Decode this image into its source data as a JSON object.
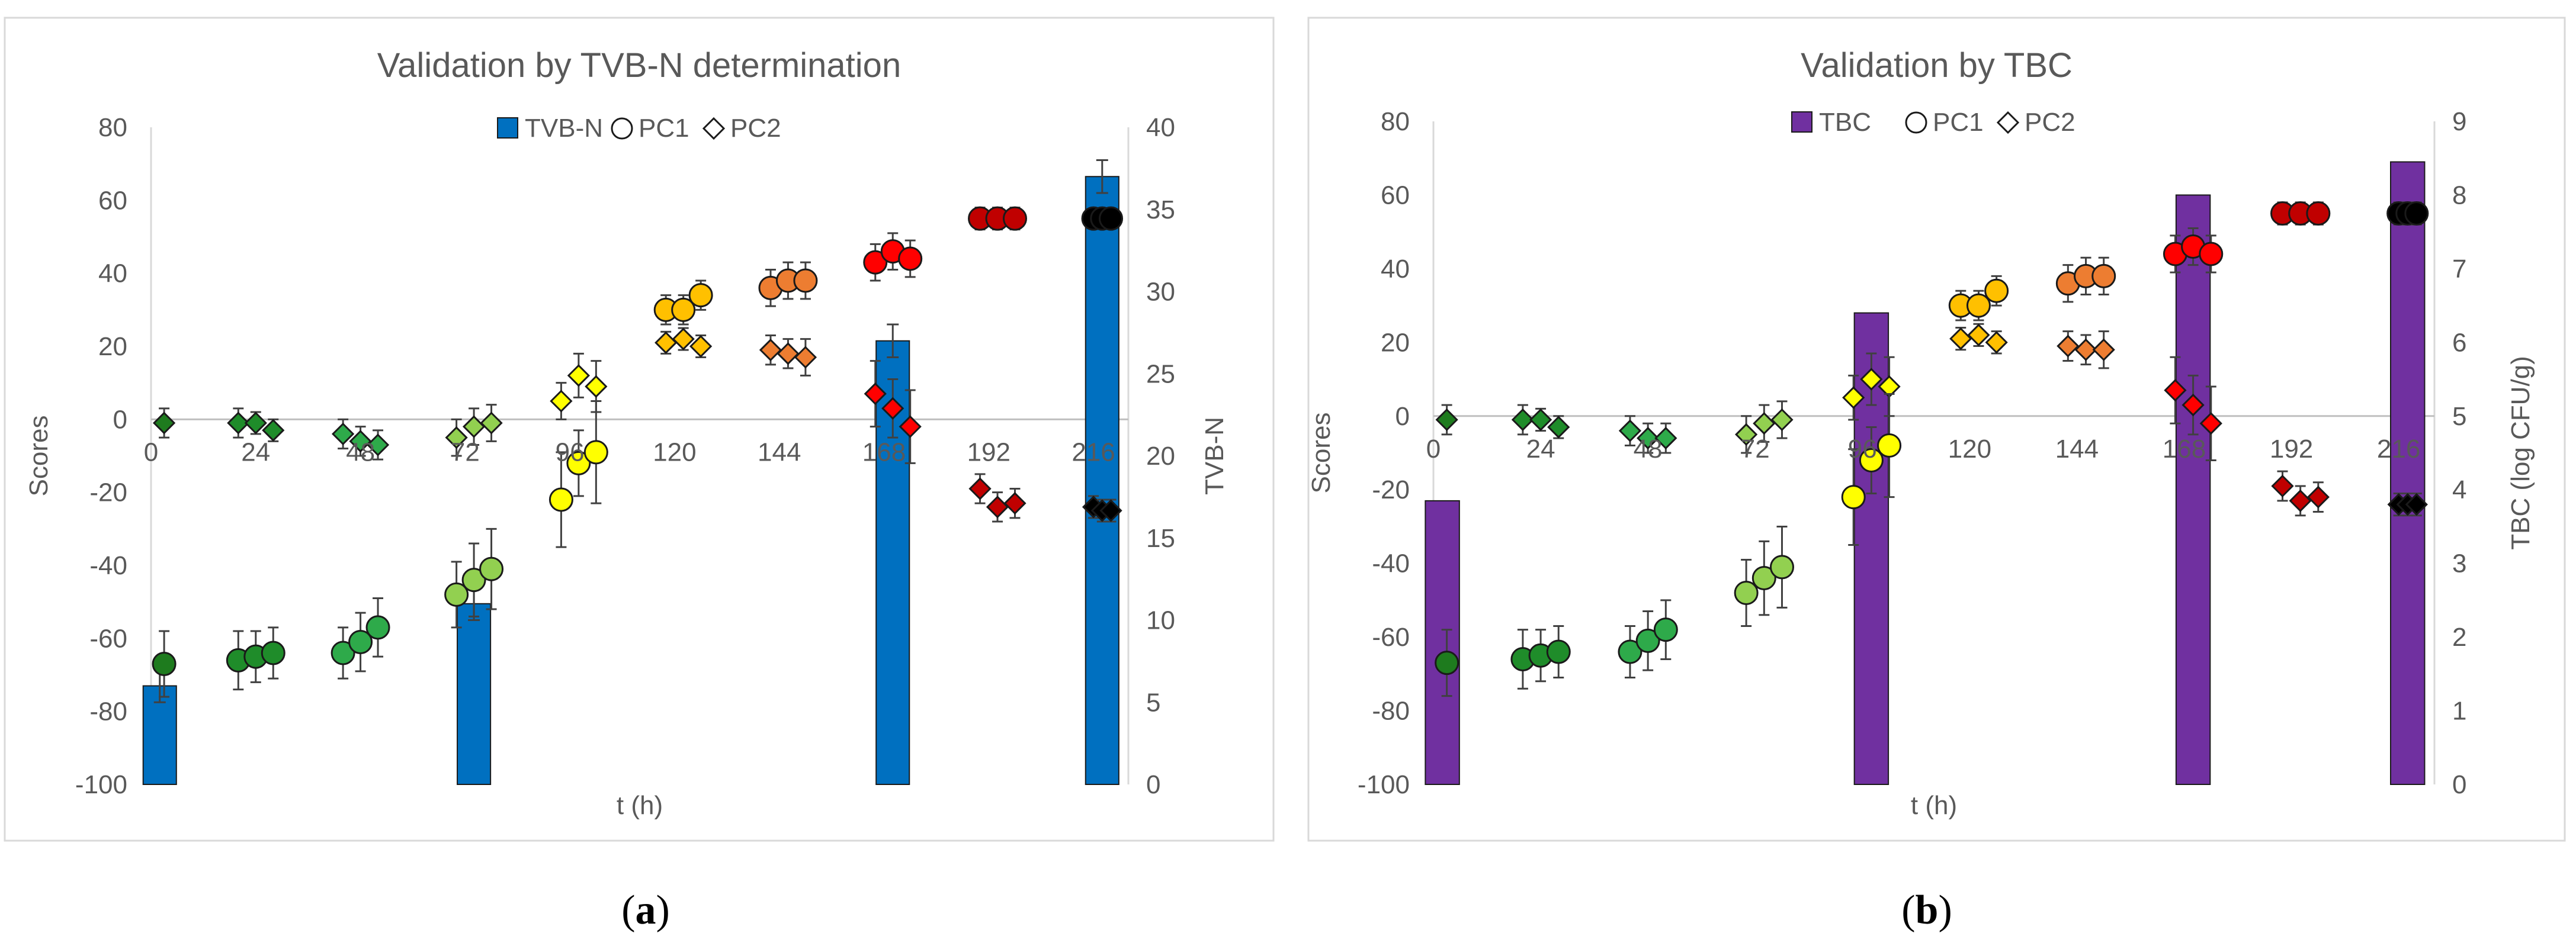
{
  "colors": {
    "tvbn_bar": "#0070c0",
    "tbc_bar": "#7030a0",
    "time": {
      "0": "#1e7b1e",
      "24": "#1f8c2a",
      "48": "#2eaa4a",
      "72": "#92d050",
      "96": "#ffff00",
      "120": "#ffc000",
      "144": "#ed7d31",
      "168": "#ff0000",
      "192": "#c00000",
      "216": "#000000"
    }
  },
  "chart_data": [
    {
      "type": "bar+scatter",
      "panel_label": "a",
      "title": "Validation by TVB-N determination",
      "xlabel": "t (h)",
      "ylabel_left": "Scores",
      "ylabel_right": "TVB-N",
      "xlim": [
        0,
        224
      ],
      "x_ticks": [
        "0",
        "24",
        "48",
        "72",
        "96",
        "120",
        "144",
        "168",
        "192",
        "216"
      ],
      "ylim_left": [
        -100,
        80
      ],
      "y_ticks_left": [
        "-100",
        "-80",
        "-60",
        "-40",
        "-20",
        "0",
        "20",
        "40",
        "60",
        "80"
      ],
      "ylim_right": [
        0,
        40
      ],
      "y_ticks_right": [
        "0",
        "5",
        "10",
        "15",
        "20",
        "25",
        "30",
        "35",
        "40"
      ],
      "legend": [
        "TVB-N",
        "PC1",
        "PC2"
      ],
      "bars": {
        "name": "TVB-N",
        "x": [
          2,
          74,
          170,
          218
        ],
        "values": [
          6.0,
          11.0,
          27.0,
          37.0
        ],
        "errors": [
          1.0,
          1.0,
          1.0,
          1.0
        ]
      },
      "pc1": [
        {
          "t": 0,
          "x": 3,
          "y": -67,
          "err": 9
        },
        {
          "t": 24,
          "x": 20,
          "y": -66,
          "err": 8
        },
        {
          "t": 24,
          "x": 24,
          "y": -65,
          "err": 7
        },
        {
          "t": 24,
          "x": 28,
          "y": -64,
          "err": 7
        },
        {
          "t": 48,
          "x": 44,
          "y": -64,
          "err": 7
        },
        {
          "t": 48,
          "x": 48,
          "y": -61,
          "err": 8
        },
        {
          "t": 48,
          "x": 52,
          "y": -57,
          "err": 8
        },
        {
          "t": 72,
          "x": 70,
          "y": -48,
          "err": 9
        },
        {
          "t": 72,
          "x": 74,
          "y": -44,
          "err": 10
        },
        {
          "t": 72,
          "x": 78,
          "y": -41,
          "err": 11
        },
        {
          "t": 96,
          "x": 94,
          "y": -22,
          "err": 13
        },
        {
          "t": 96,
          "x": 98,
          "y": -12,
          "err": 9
        },
        {
          "t": 96,
          "x": 102,
          "y": -9,
          "err": 14
        },
        {
          "t": 120,
          "x": 118,
          "y": 30,
          "err": 4
        },
        {
          "t": 120,
          "x": 122,
          "y": 30,
          "err": 4
        },
        {
          "t": 120,
          "x": 126,
          "y": 34,
          "err": 4
        },
        {
          "t": 144,
          "x": 142,
          "y": 36,
          "err": 5
        },
        {
          "t": 144,
          "x": 146,
          "y": 38,
          "err": 5
        },
        {
          "t": 144,
          "x": 150,
          "y": 38,
          "err": 5
        },
        {
          "t": 168,
          "x": 166,
          "y": 43,
          "err": 5
        },
        {
          "t": 168,
          "x": 170,
          "y": 46,
          "err": 5
        },
        {
          "t": 168,
          "x": 174,
          "y": 44,
          "err": 5
        },
        {
          "t": 192,
          "x": 190,
          "y": 55,
          "err": 3
        },
        {
          "t": 192,
          "x": 194,
          "y": 55,
          "err": 3
        },
        {
          "t": 192,
          "x": 198,
          "y": 55,
          "err": 3
        },
        {
          "t": 216,
          "x": 216,
          "y": 55,
          "err": 2
        },
        {
          "t": 216,
          "x": 218,
          "y": 55,
          "err": 2
        },
        {
          "t": 216,
          "x": 220,
          "y": 55,
          "err": 2
        }
      ],
      "pc2": [
        {
          "t": 0,
          "x": 3,
          "y": -1,
          "err": 4
        },
        {
          "t": 24,
          "x": 20,
          "y": -1,
          "err": 4
        },
        {
          "t": 24,
          "x": 24,
          "y": -1,
          "err": 3
        },
        {
          "t": 24,
          "x": 28,
          "y": -3,
          "err": 3
        },
        {
          "t": 48,
          "x": 44,
          "y": -4,
          "err": 4
        },
        {
          "t": 48,
          "x": 48,
          "y": -6,
          "err": 4
        },
        {
          "t": 48,
          "x": 52,
          "y": -7,
          "err": 4
        },
        {
          "t": 72,
          "x": 70,
          "y": -5,
          "err": 5
        },
        {
          "t": 72,
          "x": 74,
          "y": -2,
          "err": 5
        },
        {
          "t": 72,
          "x": 78,
          "y": -1,
          "err": 5
        },
        {
          "t": 96,
          "x": 94,
          "y": 5,
          "err": 5
        },
        {
          "t": 96,
          "x": 98,
          "y": 12,
          "err": 6
        },
        {
          "t": 96,
          "x": 102,
          "y": 9,
          "err": 7
        },
        {
          "t": 120,
          "x": 118,
          "y": 21,
          "err": 3
        },
        {
          "t": 120,
          "x": 122,
          "y": 22,
          "err": 3
        },
        {
          "t": 120,
          "x": 126,
          "y": 20,
          "err": 3
        },
        {
          "t": 144,
          "x": 142,
          "y": 19,
          "err": 4
        },
        {
          "t": 144,
          "x": 146,
          "y": 18,
          "err": 4
        },
        {
          "t": 144,
          "x": 150,
          "y": 17,
          "err": 5
        },
        {
          "t": 168,
          "x": 166,
          "y": 7,
          "err": 9
        },
        {
          "t": 168,
          "x": 170,
          "y": 3,
          "err": 8
        },
        {
          "t": 168,
          "x": 174,
          "y": -2,
          "err": 10
        },
        {
          "t": 192,
          "x": 190,
          "y": -19,
          "err": 4
        },
        {
          "t": 192,
          "x": 194,
          "y": -24,
          "err": 4
        },
        {
          "t": 192,
          "x": 198,
          "y": -23,
          "err": 4
        },
        {
          "t": 216,
          "x": 216,
          "y": -24,
          "err": 3
        },
        {
          "t": 216,
          "x": 218,
          "y": -25,
          "err": 3
        },
        {
          "t": 216,
          "x": 220,
          "y": -25,
          "err": 3
        }
      ]
    },
    {
      "type": "bar+scatter",
      "panel_label": "b",
      "title": "Validation by TBC",
      "xlabel": "t (h)",
      "ylabel_left": "Scores",
      "ylabel_right": "TBC (log CFU/g)",
      "xlim": [
        0,
        224
      ],
      "x_ticks": [
        "0",
        "24",
        "48",
        "72",
        "96",
        "120",
        "144",
        "168",
        "192",
        "216"
      ],
      "ylim_left": [
        -100,
        80
      ],
      "y_ticks_left": [
        "-100",
        "-80",
        "-60",
        "-40",
        "-20",
        "0",
        "20",
        "40",
        "60",
        "80"
      ],
      "ylim_right": [
        0,
        9
      ],
      "y_ticks_right": [
        "0",
        "1",
        "2",
        "3",
        "4",
        "5",
        "6",
        "7",
        "8",
        "9"
      ],
      "legend": [
        "TBC",
        "PC1",
        "PC2"
      ],
      "bars": {
        "name": "TBC",
        "x": [
          2,
          98,
          170,
          218
        ],
        "values": [
          3.85,
          6.4,
          8.0,
          8.45
        ],
        "errors": [
          0,
          0,
          0,
          0
        ]
      },
      "pc1": [
        {
          "t": 0,
          "x": 3,
          "y": -67,
          "err": 9
        },
        {
          "t": 24,
          "x": 20,
          "y": -66,
          "err": 8
        },
        {
          "t": 24,
          "x": 24,
          "y": -65,
          "err": 7
        },
        {
          "t": 24,
          "x": 28,
          "y": -64,
          "err": 7
        },
        {
          "t": 48,
          "x": 44,
          "y": -64,
          "err": 7
        },
        {
          "t": 48,
          "x": 48,
          "y": -61,
          "err": 8
        },
        {
          "t": 48,
          "x": 52,
          "y": -58,
          "err": 8
        },
        {
          "t": 72,
          "x": 70,
          "y": -48,
          "err": 9
        },
        {
          "t": 72,
          "x": 74,
          "y": -44,
          "err": 10
        },
        {
          "t": 72,
          "x": 78,
          "y": -41,
          "err": 11
        },
        {
          "t": 96,
          "x": 94,
          "y": -22,
          "err": 13
        },
        {
          "t": 96,
          "x": 98,
          "y": -12,
          "err": 9
        },
        {
          "t": 96,
          "x": 102,
          "y": -8,
          "err": 14
        },
        {
          "t": 120,
          "x": 118,
          "y": 30,
          "err": 4
        },
        {
          "t": 120,
          "x": 122,
          "y": 30,
          "err": 4
        },
        {
          "t": 120,
          "x": 126,
          "y": 34,
          "err": 4
        },
        {
          "t": 144,
          "x": 142,
          "y": 36,
          "err": 5
        },
        {
          "t": 144,
          "x": 146,
          "y": 38,
          "err": 5
        },
        {
          "t": 144,
          "x": 150,
          "y": 38,
          "err": 5
        },
        {
          "t": 168,
          "x": 166,
          "y": 44,
          "err": 5
        },
        {
          "t": 168,
          "x": 170,
          "y": 46,
          "err": 5
        },
        {
          "t": 168,
          "x": 174,
          "y": 44,
          "err": 5
        },
        {
          "t": 192,
          "x": 190,
          "y": 55,
          "err": 3
        },
        {
          "t": 192,
          "x": 194,
          "y": 55,
          "err": 3
        },
        {
          "t": 192,
          "x": 198,
          "y": 55,
          "err": 3
        },
        {
          "t": 216,
          "x": 216,
          "y": 55,
          "err": 3
        },
        {
          "t": 216,
          "x": 218,
          "y": 55,
          "err": 3
        },
        {
          "t": 216,
          "x": 220,
          "y": 55,
          "err": 3
        }
      ],
      "pc2": [
        {
          "t": 0,
          "x": 3,
          "y": -1,
          "err": 4
        },
        {
          "t": 24,
          "x": 20,
          "y": -1,
          "err": 4
        },
        {
          "t": 24,
          "x": 24,
          "y": -1,
          "err": 3
        },
        {
          "t": 24,
          "x": 28,
          "y": -3,
          "err": 3
        },
        {
          "t": 48,
          "x": 44,
          "y": -4,
          "err": 4
        },
        {
          "t": 48,
          "x": 48,
          "y": -6,
          "err": 4
        },
        {
          "t": 48,
          "x": 52,
          "y": -6,
          "err": 4
        },
        {
          "t": 72,
          "x": 70,
          "y": -5,
          "err": 5
        },
        {
          "t": 72,
          "x": 74,
          "y": -2,
          "err": 5
        },
        {
          "t": 72,
          "x": 78,
          "y": -1,
          "err": 5
        },
        {
          "t": 96,
          "x": 94,
          "y": 5,
          "err": 6
        },
        {
          "t": 96,
          "x": 98,
          "y": 10,
          "err": 7
        },
        {
          "t": 96,
          "x": 102,
          "y": 8,
          "err": 8
        },
        {
          "t": 120,
          "x": 118,
          "y": 21,
          "err": 3
        },
        {
          "t": 120,
          "x": 122,
          "y": 22,
          "err": 3
        },
        {
          "t": 120,
          "x": 126,
          "y": 20,
          "err": 3
        },
        {
          "t": 144,
          "x": 142,
          "y": 19,
          "err": 4
        },
        {
          "t": 144,
          "x": 146,
          "y": 18,
          "err": 4
        },
        {
          "t": 144,
          "x": 150,
          "y": 18,
          "err": 5
        },
        {
          "t": 168,
          "x": 166,
          "y": 7,
          "err": 9
        },
        {
          "t": 168,
          "x": 170,
          "y": 3,
          "err": 8
        },
        {
          "t": 168,
          "x": 174,
          "y": -2,
          "err": 10
        },
        {
          "t": 192,
          "x": 190,
          "y": -19,
          "err": 4
        },
        {
          "t": 192,
          "x": 194,
          "y": -23,
          "err": 4
        },
        {
          "t": 192,
          "x": 198,
          "y": -22,
          "err": 4
        },
        {
          "t": 216,
          "x": 216,
          "y": -24,
          "err": 3
        },
        {
          "t": 216,
          "x": 218,
          "y": -24,
          "err": 3
        },
        {
          "t": 216,
          "x": 220,
          "y": -24,
          "err": 3
        }
      ]
    }
  ]
}
